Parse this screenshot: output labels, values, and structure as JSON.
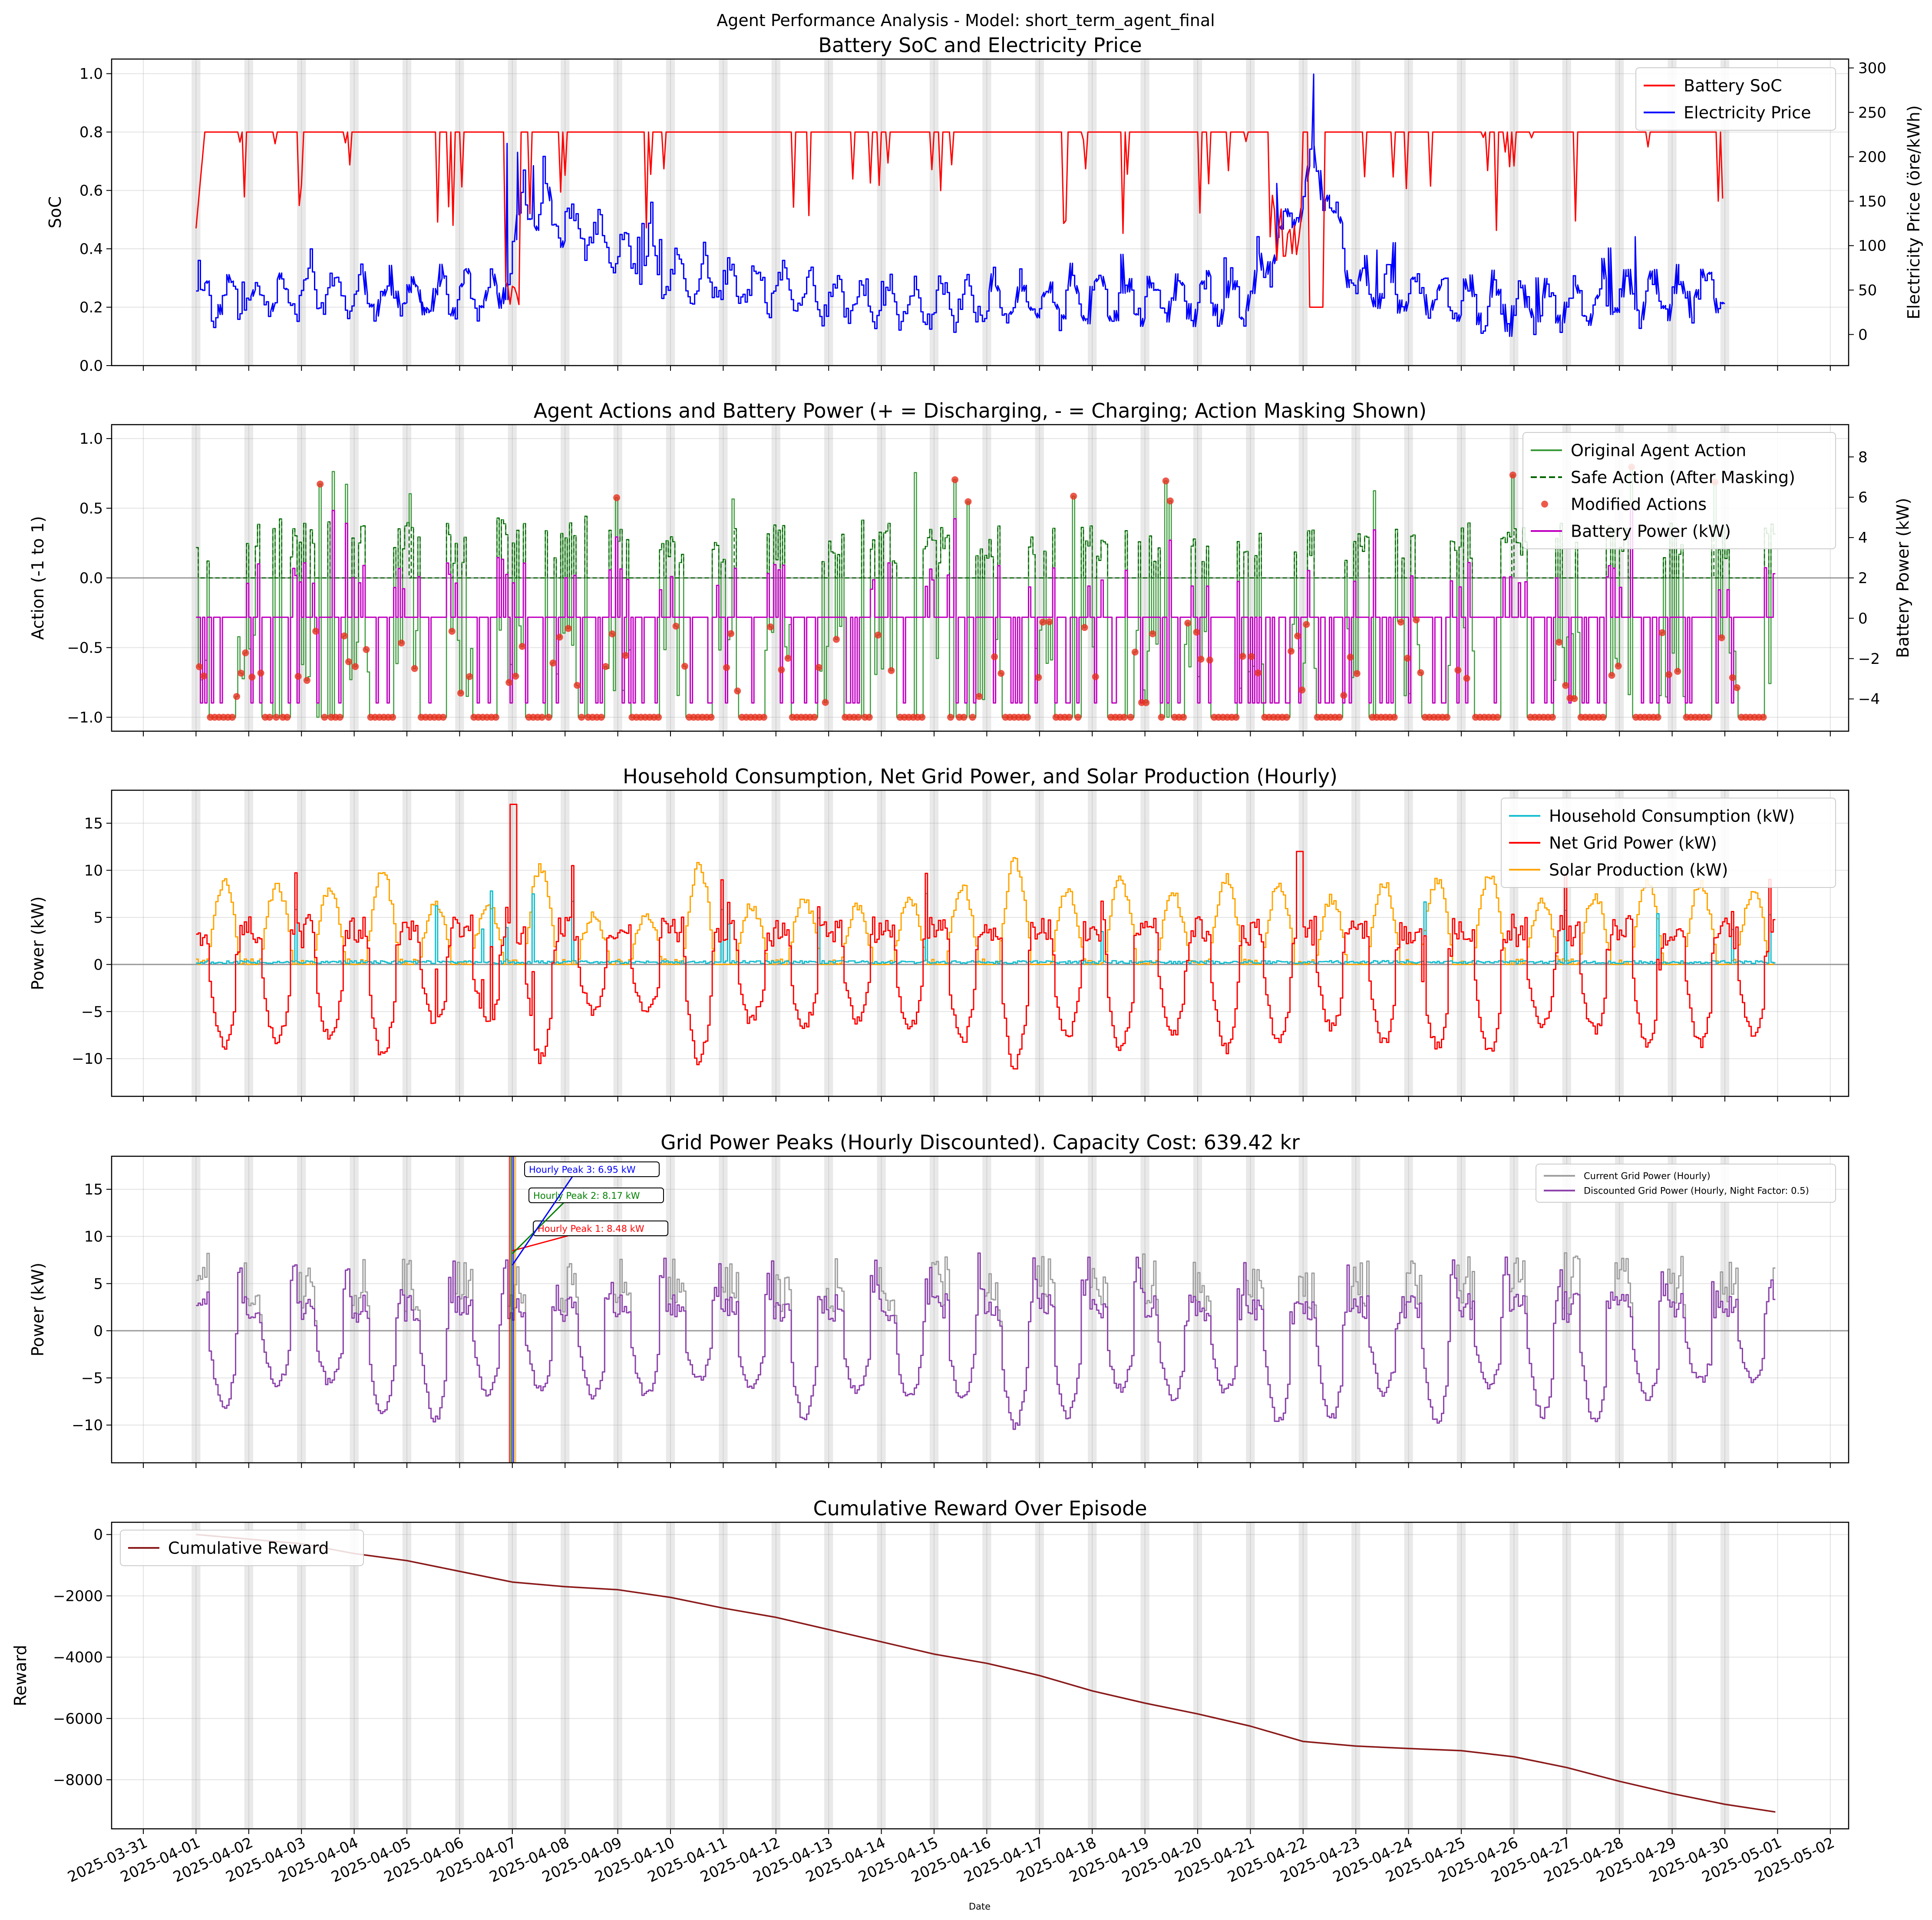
{
  "figure": {
    "suptitle": "Agent Performance Analysis - Model: short_term_agent_final",
    "xlabel": "Date",
    "date_ticks": [
      "2025-03-31",
      "2025-04-01",
      "2025-04-02",
      "2025-04-03",
      "2025-04-04",
      "2025-04-05",
      "2025-04-06",
      "2025-04-07",
      "2025-04-08",
      "2025-04-09",
      "2025-04-10",
      "2025-04-11",
      "2025-04-12",
      "2025-04-13",
      "2025-04-14",
      "2025-04-15",
      "2025-04-16",
      "2025-04-17",
      "2025-04-18",
      "2025-04-19",
      "2025-04-20",
      "2025-04-21",
      "2025-04-22",
      "2025-04-23",
      "2025-04-24",
      "2025-04-25",
      "2025-04-26",
      "2025-04-27",
      "2025-04-28",
      "2025-04-29",
      "2025-04-30",
      "2025-05-01",
      "2025-05-02"
    ],
    "night_shading": "gray bands around each midnight (22:00-02:00)"
  },
  "chart_data": [
    {
      "type": "line",
      "title": "Battery SoC and Electricity Price",
      "ylabel": "SoC",
      "ylabel_right": "Electricity Price (öre/kWh)",
      "ylim": [
        0,
        1.05
      ],
      "ylim_right": [
        -35,
        310
      ],
      "yticks": [
        "0.0",
        "0.2",
        "0.4",
        "0.6",
        "0.8",
        "1.0"
      ],
      "yticks_right": [
        "0",
        "50",
        "100",
        "150",
        "200",
        "250",
        "300"
      ],
      "xlim": [
        "2025-03-30T13:00",
        "2025-05-02T09:00"
      ],
      "legend": "top-right",
      "series": [
        {
          "name": "Battery SoC",
          "color": "#ff0000",
          "axis": "left",
          "x": [
            "2025-04-01 00:00",
            "2025-04-01 04:00",
            "2025-04-02 00:00",
            "2025-04-06 12:00",
            "2025-04-07 00:00",
            "2025-04-09 00:00",
            "2025-04-16 00:00",
            "2025-04-21 12:00",
            "2025-04-22 00:00",
            "2025-04-23 00:00",
            "2025-04-25 00:00",
            "2025-04-30 00:00"
          ],
          "values": [
            0.47,
            0.8,
            0.8,
            0.8,
            0.2,
            0.8,
            0.8,
            0.8,
            0.36,
            0.8,
            0.8,
            0.8
          ]
        },
        {
          "name": "Electricity Price",
          "color": "#0000ff",
          "axis": "right",
          "x": [
            "2025-04-01 00:00",
            "2025-04-03 00:00",
            "2025-04-06 18:00",
            "2025-04-07 06:00",
            "2025-04-10 00:00",
            "2025-04-14 00:00",
            "2025-04-17 00:00",
            "2025-04-21 00:00",
            "2025-04-22 06:00",
            "2025-04-23 00:00",
            "2025-04-26 00:00",
            "2025-04-30 00:00"
          ],
          "values": [
            33,
            50,
            40,
            215,
            80,
            30,
            35,
            40,
            293,
            60,
            20,
            55
          ]
        }
      ]
    },
    {
      "type": "line",
      "title": "Agent Actions and Battery Power (+ = Discharging, - = Charging; Action Masking Shown)",
      "ylabel": "Action (-1 to 1)",
      "ylabel_right": "Battery Power (kW)",
      "ylim": [
        -1.1,
        1.1
      ],
      "ylim_right": [
        -5.6,
        9.6
      ],
      "yticks": [
        "−1.0",
        "−0.5",
        "0.0",
        "0.5",
        "1.0"
      ],
      "yticks_right": [
        "−4",
        "−2",
        "0",
        "2",
        "4",
        "6",
        "8"
      ],
      "legend": "top-right",
      "series": [
        {
          "name": "Original Agent Action",
          "color": "#3a9a3a",
          "style": "solid",
          "range": [
            -1,
            0.45
          ]
        },
        {
          "name": "Safe Action (After Masking)",
          "color": "#006400",
          "style": "dashed",
          "range": [
            -0.25,
            0.38
          ]
        },
        {
          "name": "Modified Actions",
          "color": "#e8301e",
          "style": "markers",
          "range": [
            -1,
            0.8
          ]
        },
        {
          "name": "Battery Power (kW)",
          "color": "#c000c0",
          "style": "solid",
          "range": [
            -4.7,
            8.9
          ]
        }
      ]
    },
    {
      "type": "line",
      "title": "Household Consumption, Net Grid Power, and Solar Production (Hourly)",
      "ylabel": "Power (kW)",
      "ylim": [
        -14,
        18.5
      ],
      "yticks": [
        "−10",
        "−5",
        "0",
        "5",
        "10",
        "15"
      ],
      "legend": "top-right",
      "series": [
        {
          "name": "Household Consumption (kW)",
          "color": "#17becf",
          "range": [
            0,
            10
          ]
        },
        {
          "name": "Net Grid Power (kW)",
          "color": "#ff0000",
          "range": [
            -12.5,
            17
          ]
        },
        {
          "name": "Solar Production (kW)",
          "color": "#ffa500",
          "range": [
            0,
            11
          ]
        }
      ]
    },
    {
      "type": "line",
      "title": "Grid Power Peaks (Hourly Discounted). Capacity Cost: 639.42 kr",
      "ylabel": "Power (kW)",
      "ylim": [
        -14,
        18.5
      ],
      "yticks": [
        "−10",
        "−5",
        "0",
        "5",
        "10",
        "15"
      ],
      "legend": "top-right",
      "series": [
        {
          "name": "Current Grid Power (Hourly)",
          "color": "#a0a0a0",
          "range": [
            -12.5,
            12
          ]
        },
        {
          "name": "Discounted Grid Power (Hourly, Night Factor: 0.5)",
          "color": "#8e44ad",
          "range": [
            -12.5,
            8.5
          ]
        }
      ],
      "annotations": [
        {
          "label": "Hourly Peak 1: 8.48 kW",
          "color": "#ff0000",
          "x": "2025-04-07 00:00",
          "value": 8.48
        },
        {
          "label": "Hourly Peak 2: 8.17 kW",
          "color": "#008000",
          "x": "2025-04-07 00:00",
          "value": 8.17
        },
        {
          "label": "Hourly Peak 3: 6.95 kW",
          "color": "#0000ff",
          "x": "2025-04-07 00:00",
          "value": 6.95
        }
      ]
    },
    {
      "type": "line",
      "title": "Cumulative Reward Over Episode",
      "ylabel": "Reward",
      "ylim": [
        -9600,
        400
      ],
      "yticks": [
        "−8000",
        "−6000",
        "−4000",
        "−2000",
        "0"
      ],
      "legend": "top-left",
      "series": [
        {
          "name": "Cumulative Reward",
          "color": "#8b1a1a",
          "x": [
            "2025-04-01",
            "2025-04-02",
            "2025-04-03",
            "2025-04-04",
            "2025-04-05",
            "2025-04-06",
            "2025-04-07",
            "2025-04-08",
            "2025-04-09",
            "2025-04-10",
            "2025-04-11",
            "2025-04-12",
            "2025-04-13",
            "2025-04-14",
            "2025-04-15",
            "2025-04-16",
            "2025-04-17",
            "2025-04-18",
            "2025-04-19",
            "2025-04-20",
            "2025-04-21",
            "2025-04-22",
            "2025-04-23",
            "2025-04-24",
            "2025-04-25",
            "2025-04-26",
            "2025-04-27",
            "2025-04-28",
            "2025-04-29",
            "2025-04-30",
            "2025-04-30 23:00"
          ],
          "values": [
            0,
            -150,
            -300,
            -620,
            -850,
            -1200,
            -1550,
            -1700,
            -1800,
            -2050,
            -2400,
            -2700,
            -3100,
            -3500,
            -3900,
            -4200,
            -4600,
            -5100,
            -5500,
            -5850,
            -6250,
            -6750,
            -6900,
            -6980,
            -7050,
            -7250,
            -7600,
            -8050,
            -8450,
            -8800,
            -9050
          ]
        }
      ]
    }
  ]
}
